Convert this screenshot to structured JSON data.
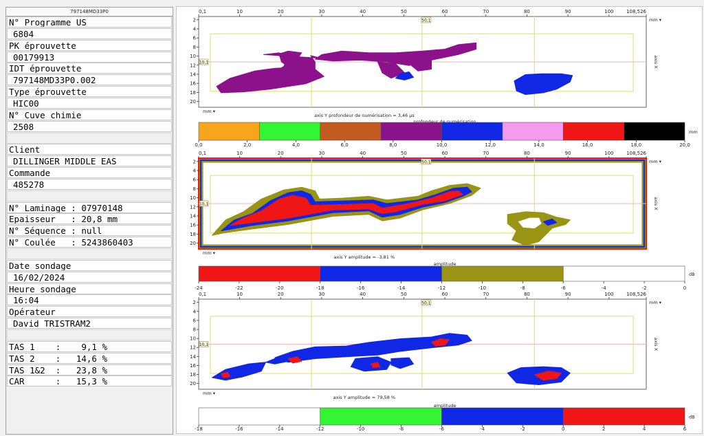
{
  "left_panel": {
    "header": "797148MD33P0",
    "rows": [
      {
        "text": "N° Programme US",
        "kind": "label"
      },
      {
        "text": "6804",
        "kind": "val"
      },
      {
        "text": "PK éprouvette",
        "kind": "label"
      },
      {
        "text": "00179913",
        "kind": "val"
      },
      {
        "text": "IDT éprouvette",
        "kind": "label"
      },
      {
        "text": "797148MD33P0.002",
        "kind": "val"
      },
      {
        "text": "Type éprouvette",
        "kind": "label"
      },
      {
        "text": "HIC00",
        "kind": "val"
      },
      {
        "text": "N° Cuve chimie",
        "kind": "label"
      },
      {
        "text": "2508",
        "kind": "val"
      },
      {
        "text": "",
        "kind": "blank"
      },
      {
        "text": "Client",
        "kind": "label"
      },
      {
        "text": "DILLINGER MIDDLE EAS",
        "kind": "val"
      },
      {
        "text": "Commande",
        "kind": "label"
      },
      {
        "text": "485278",
        "kind": "val"
      },
      {
        "text": "",
        "kind": "blank"
      },
      {
        "text": "N° Laminage : 07970148",
        "kind": "label"
      },
      {
        "text": "Epaisseur   : 20,8 mm",
        "kind": "label"
      },
      {
        "text": "N° Séquence : null",
        "kind": "label"
      },
      {
        "text": "N° Coulée   : 5243860403",
        "kind": "label"
      },
      {
        "text": "",
        "kind": "blank"
      },
      {
        "text": "Date sondage",
        "kind": "label"
      },
      {
        "text": "16/02/2024",
        "kind": "val"
      },
      {
        "text": "Heure sondage",
        "kind": "label"
      },
      {
        "text": "16:04",
        "kind": "val"
      },
      {
        "text": "Opérateur",
        "kind": "label"
      },
      {
        "text": "David TRISTRAM2",
        "kind": "val"
      },
      {
        "text": "",
        "kind": "blank"
      },
      {
        "text": "TAS 1    :    9,1 %",
        "kind": "label"
      },
      {
        "text": "TAS 2    :   14,6 %",
        "kind": "label"
      },
      {
        "text": "TAS 1&2  :   23,8 %",
        "kind": "label"
      },
      {
        "text": "CAR      :   15,3 %",
        "kind": "label"
      }
    ]
  },
  "scans": [
    {
      "name": "depth",
      "x_ticks": [
        "0,1",
        "10",
        "20",
        "30",
        "40",
        "50",
        "60",
        "70",
        "80",
        "90",
        "100",
        "108,526"
      ],
      "y_ticks": [
        "2",
        "4",
        "6",
        "8",
        "10",
        "12",
        "14",
        "16",
        "18",
        "20"
      ],
      "unit_top": "mm",
      "unit_bottom": "mm",
      "axis_right": "axis X",
      "marker_top": "50,1",
      "marker_left": "10,1",
      "caption": "axis Y   profondeur de numérisation = 3,46 µs",
      "palette_title": "profondeur de numérisation",
      "palette_unit": "mm",
      "palette_ticks": [
        "0,0",
        "2,0",
        "4,0",
        "6,0",
        "8,0",
        "10,0",
        "12,0",
        "14,0",
        "16,0",
        "18,0",
        "20,0"
      ],
      "palette_colors": [
        "#f7a51c",
        "#34f534",
        "#c35a1f",
        "#8c128c",
        "#1127e6",
        "#f59bef",
        "#f01616",
        "#000000"
      ]
    },
    {
      "name": "amplitude-1",
      "x_ticks": [
        "0,1",
        "10",
        "20",
        "30",
        "40",
        "50",
        "60",
        "70",
        "80",
        "90",
        "100",
        "108,526"
      ],
      "y_ticks": [
        "2",
        "4",
        "6",
        "8",
        "10",
        "12",
        "14",
        "16",
        "18",
        "20"
      ],
      "unit_top": "mm",
      "unit_bottom": "mm",
      "axis_right": "axis X",
      "marker_top": "50,1",
      "marker_left": "10,1",
      "caption": "axis Y   amplitude = -3,81 %",
      "palette_title": "amplitude",
      "palette_unit": "dB",
      "palette_ticks": [
        "-24",
        "-22",
        "-20",
        "-18",
        "-16",
        "-14",
        "-12",
        "-10",
        "-8",
        "-6",
        "-4",
        "-2",
        "0"
      ],
      "palette_colors": [
        "#f01616",
        "#1127e6",
        "#9a9414",
        "#ffffff"
      ]
    },
    {
      "name": "amplitude-2",
      "x_ticks": [
        "0,1",
        "10",
        "20",
        "30",
        "40",
        "50",
        "60",
        "70",
        "80",
        "90",
        "100",
        "108,526"
      ],
      "y_ticks": [
        "2",
        "4",
        "6",
        "8",
        "10",
        "12",
        "14",
        "16",
        "18",
        "20"
      ],
      "unit_top": "mm",
      "unit_bottom": "mm",
      "axis_right": "axis X",
      "marker_top": "50,1",
      "marker_left": "10,1",
      "caption": "axis Y   amplitude = 79,58 %",
      "palette_title": "amplitude",
      "palette_unit": "dB",
      "palette_ticks": [
        "-18",
        "-16",
        "-14",
        "-12",
        "-10",
        "-8",
        "-6",
        "-4",
        "-2",
        "0",
        "2",
        "4",
        "6"
      ],
      "palette_colors": [
        "#ffffff",
        "#34f534",
        "#1127e6",
        "#f01616"
      ]
    }
  ]
}
